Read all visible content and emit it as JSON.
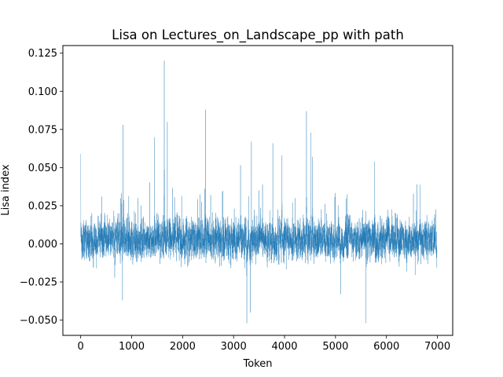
{
  "chart_data": {
    "type": "line",
    "title": "Lisa on Lectures_on_Landscape_pp with path",
    "xlabel": "Token",
    "ylabel": "Lisa index",
    "xlim": [
      -350,
      7300
    ],
    "ylim": [
      -0.06,
      0.13
    ],
    "xticks": [
      0,
      1000,
      2000,
      3000,
      4000,
      5000,
      6000,
      7000
    ],
    "xtick_labels": [
      "0",
      "1000",
      "2000",
      "3000",
      "4000",
      "5000",
      "6000",
      "7000"
    ],
    "yticks": [
      -0.05,
      -0.025,
      0.0,
      0.025,
      0.05,
      0.075,
      0.1,
      0.125
    ],
    "ytick_labels": [
      "−0.050",
      "−0.025",
      "0.000",
      "0.025",
      "0.050",
      "0.075",
      "0.100",
      "0.125"
    ],
    "grid": false,
    "legend": "none",
    "series": [
      {
        "color": "#1f77b4",
        "n_points": 7000,
        "x_range": [
          0,
          6990
        ],
        "typical_band": [
          -0.015,
          0.025
        ],
        "notable_peaks": [
          {
            "x": 0,
            "y": 0.059
          },
          {
            "x": 830,
            "y": 0.078
          },
          {
            "x": 1450,
            "y": 0.07
          },
          {
            "x": 1640,
            "y": 0.12
          },
          {
            "x": 1700,
            "y": 0.08
          },
          {
            "x": 2450,
            "y": 0.088
          },
          {
            "x": 3350,
            "y": 0.067
          },
          {
            "x": 3770,
            "y": 0.066
          },
          {
            "x": 3950,
            "y": 0.058
          },
          {
            "x": 4430,
            "y": 0.087
          },
          {
            "x": 4520,
            "y": 0.073
          },
          {
            "x": 4550,
            "y": 0.057
          },
          {
            "x": 5770,
            "y": 0.054
          }
        ],
        "notable_troughs": [
          {
            "x": 820,
            "y": -0.037
          },
          {
            "x": 3260,
            "y": -0.052
          },
          {
            "x": 3330,
            "y": -0.045
          },
          {
            "x": 5600,
            "y": -0.052
          },
          {
            "x": 5100,
            "y": -0.033
          }
        ]
      }
    ]
  }
}
